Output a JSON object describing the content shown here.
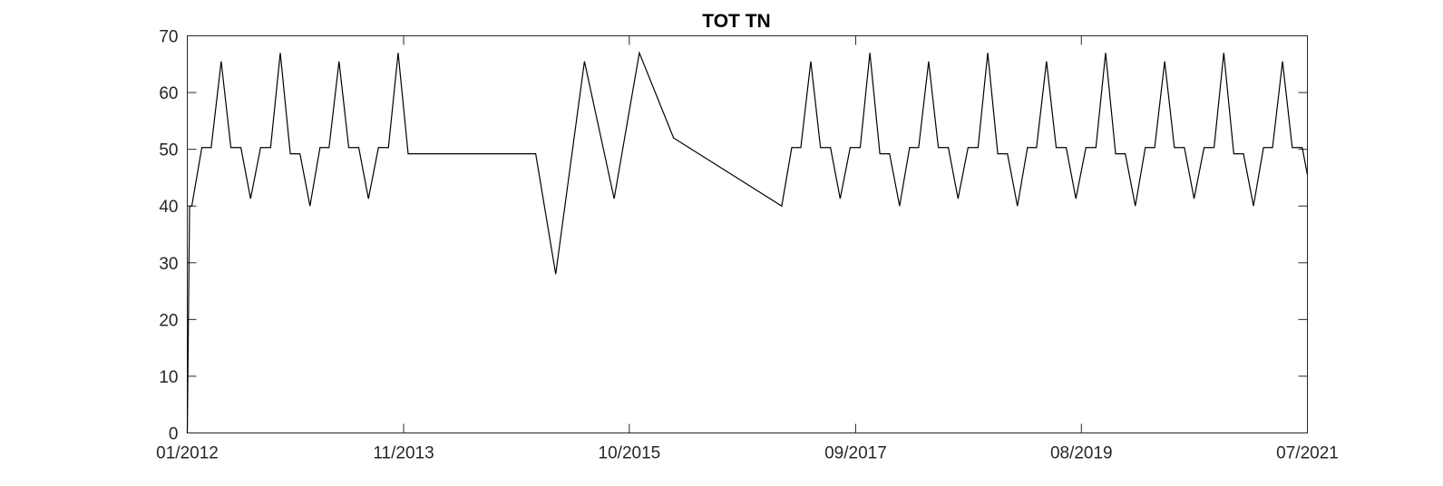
{
  "chart_data": {
    "type": "line",
    "title": "TOT TN",
    "xlabel": "",
    "ylabel": "",
    "xlim": [
      "2012-01-01",
      "2021-07-01"
    ],
    "ylim": [
      0,
      70
    ],
    "grid": false,
    "x_ticks": [
      {
        "date": "2012-01-01",
        "label": "01/2012"
      },
      {
        "date": "2013-11-01",
        "label": "11/2013"
      },
      {
        "date": "2015-10-01",
        "label": "10/2015"
      },
      {
        "date": "2017-09-01",
        "label": "09/2017"
      },
      {
        "date": "2019-08-01",
        "label": "08/2019"
      },
      {
        "date": "2021-07-01",
        "label": "07/2021"
      }
    ],
    "y_ticks": [
      0,
      10,
      20,
      30,
      40,
      50,
      60,
      70
    ],
    "line_color": "#000000",
    "series": [
      {
        "x": [
          "2012-01-01",
          "2012-01-08",
          "2012-01-15",
          "2012-02-15",
          "2012-03-15",
          "2012-04-15",
          "2012-05-15",
          "2012-06-15",
          "2012-07-15",
          "2012-08-15",
          "2012-09-15",
          "2012-10-15",
          "2012-11-15",
          "2012-12-15",
          "2013-01-15",
          "2013-02-15",
          "2013-03-15",
          "2013-04-15",
          "2013-05-15",
          "2013-06-15",
          "2013-07-15",
          "2013-08-15",
          "2013-09-15",
          "2013-10-15",
          "2013-11-15",
          "2014-12-15",
          "2015-02-15",
          "2015-05-15",
          "2015-08-15",
          "2015-11-01",
          "2016-02-15",
          "2017-01-15",
          "2017-02-15",
          "2017-03-15",
          "2017-04-15",
          "2017-05-15",
          "2017-06-15",
          "2017-07-15",
          "2017-08-15",
          "2017-09-15",
          "2017-10-15",
          "2017-11-15",
          "2017-12-15",
          "2018-01-15",
          "2018-02-15",
          "2018-03-15",
          "2018-04-15",
          "2018-05-15",
          "2018-06-15",
          "2018-07-15",
          "2018-08-15",
          "2018-09-15",
          "2018-10-15",
          "2018-11-15",
          "2018-12-15",
          "2019-01-15",
          "2019-02-15",
          "2019-03-15",
          "2019-04-15",
          "2019-05-15",
          "2019-06-15",
          "2019-07-15",
          "2019-08-15",
          "2019-09-15",
          "2019-10-15",
          "2019-11-15",
          "2019-12-15",
          "2020-01-15",
          "2020-02-15",
          "2020-03-15",
          "2020-04-15",
          "2020-05-15",
          "2020-06-15",
          "2020-07-15",
          "2020-08-15",
          "2020-09-15",
          "2020-10-15",
          "2020-11-15",
          "2020-12-15",
          "2021-01-15",
          "2021-02-15",
          "2021-03-15",
          "2021-04-15",
          "2021-05-15",
          "2021-06-15",
          "2021-07-01"
        ],
        "y": [
          0,
          40,
          40,
          50.3,
          50.3,
          65.5,
          50.3,
          50.3,
          41.3,
          50.3,
          50.3,
          67,
          49.2,
          49.2,
          40,
          50.3,
          50.3,
          65.5,
          50.3,
          50.3,
          41.3,
          50.3,
          50.3,
          67,
          49.2,
          49.2,
          28,
          65.5,
          41.3,
          67,
          52,
          40,
          50.3,
          50.3,
          65.5,
          50.3,
          50.3,
          41.3,
          50.3,
          50.3,
          67,
          49.2,
          49.2,
          40,
          50.3,
          50.3,
          65.5,
          50.3,
          50.3,
          41.3,
          50.3,
          50.3,
          67,
          49.2,
          49.2,
          40,
          50.3,
          50.3,
          65.5,
          50.3,
          50.3,
          41.3,
          50.3,
          50.3,
          67,
          49.2,
          49.2,
          40,
          50.3,
          50.3,
          65.5,
          50.3,
          50.3,
          41.3,
          50.3,
          50.3,
          67,
          49.2,
          49.2,
          40,
          50.3,
          50.3,
          65.5,
          50.3,
          50.3,
          45.5
        ]
      }
    ]
  }
}
